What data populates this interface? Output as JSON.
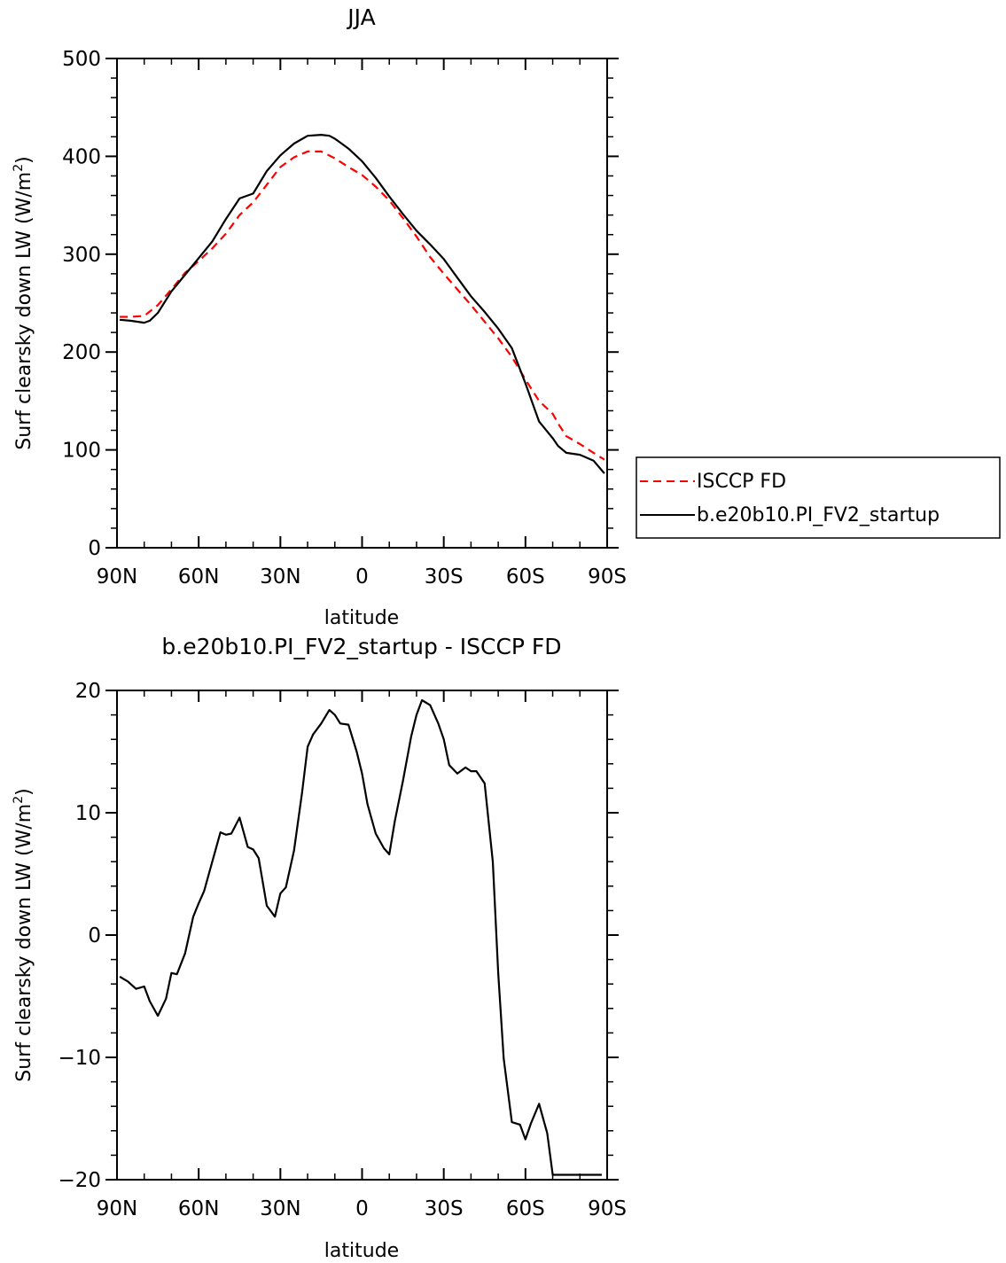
{
  "chart_data": [
    {
      "type": "line",
      "title": "JJA",
      "xlabel": "latitude",
      "ylabel": "Surf clearsky down LW (W/m²)",
      "ylabel_parts": {
        "pre": "Surf clearsky down LW (W/m",
        "sup": "2",
        "post": ")"
      },
      "xlim": [
        90,
        -90
      ],
      "ylim": [
        0,
        500
      ],
      "x_ticks": [
        90,
        60,
        30,
        0,
        -30,
        -60,
        -90
      ],
      "x_tick_labels": [
        "90N",
        "60N",
        "30N",
        "0",
        "30S",
        "60S",
        "90S"
      ],
      "y_ticks": [
        0,
        100,
        200,
        300,
        400,
        500
      ],
      "y_tick_labels": [
        "0",
        "100",
        "200",
        "300",
        "400",
        "500"
      ],
      "legend": {
        "placement": "right",
        "entries": [
          "ISCCP FD",
          "b.e20b10.PI_FV2_startup"
        ]
      },
      "series": [
        {
          "name": "ISCCP FD",
          "color": "#ff0000",
          "dashed": true,
          "x": [
            89,
            85,
            80,
            75,
            70,
            65,
            60,
            55,
            50,
            45,
            40,
            35,
            30,
            25,
            20,
            15,
            10,
            5,
            0,
            -5,
            -10,
            -15,
            -20,
            -25,
            -30,
            -35,
            -40,
            -45,
            -50,
            -55,
            -60,
            -65,
            -70,
            -72,
            -75,
            -80,
            -85,
            -89
          ],
          "y": [
            236,
            236,
            237,
            248,
            264,
            281,
            293,
            306,
            321,
            340,
            353,
            371,
            389,
            399,
            405,
            405,
            398,
            389,
            381,
            369,
            355,
            337,
            318,
            297,
            280,
            264,
            248,
            231,
            214,
            195,
            172,
            150,
            137,
            127,
            114,
            106,
            97,
            90
          ]
        },
        {
          "name": "b.e20b10.PI_FV2_startup",
          "color": "#000000",
          "dashed": false,
          "x": [
            89,
            85,
            80,
            78,
            75,
            70,
            65,
            60,
            55,
            50,
            45,
            40,
            35,
            30,
            25,
            20,
            15,
            12,
            10,
            8,
            5,
            0,
            -5,
            -10,
            -15,
            -20,
            -25,
            -30,
            -35,
            -40,
            -45,
            -50,
            -55,
            -60,
            -65,
            -70,
            -72,
            -75,
            -80,
            -85,
            -89
          ],
          "y": [
            233,
            232,
            230,
            232,
            240,
            262,
            279,
            296,
            313,
            336,
            357,
            362,
            385,
            401,
            413,
            421,
            422,
            421,
            418,
            414,
            408,
            395,
            378,
            359,
            341,
            324,
            310,
            295,
            276,
            257,
            241,
            224,
            204,
            168,
            129,
            112,
            104,
            97,
            95,
            89,
            76
          ]
        }
      ]
    },
    {
      "type": "line",
      "title": "b.e20b10.PI_FV2_startup - ISCCP FD",
      "xlabel": "latitude",
      "ylabel": "Surf clearsky down LW (W/m²)",
      "ylabel_parts": {
        "pre": "Surf clearsky down LW (W/m",
        "sup": "2",
        "post": ")"
      },
      "xlim": [
        90,
        -90
      ],
      "ylim": [
        -20,
        20
      ],
      "x_ticks": [
        90,
        60,
        30,
        0,
        -30,
        -60,
        -90
      ],
      "x_tick_labels": [
        "90N",
        "60N",
        "30N",
        "0",
        "30S",
        "60S",
        "90S"
      ],
      "y_ticks": [
        -20,
        -10,
        0,
        10,
        20
      ],
      "y_tick_labels": [
        "−20",
        "−10",
        "0",
        "10",
        "20"
      ],
      "series": [
        {
          "color": "#000000",
          "dashed": false,
          "x": [
            89,
            86,
            83,
            80,
            78,
            75,
            72,
            70,
            68,
            65,
            62,
            60,
            58,
            55,
            52,
            50,
            48,
            45,
            42,
            40,
            38,
            35,
            32,
            30,
            28,
            25,
            22,
            20,
            18,
            15,
            12,
            10,
            8,
            5,
            2,
            0,
            -2,
            -5,
            -8,
            -10,
            -12,
            -15,
            -18,
            -20,
            -22,
            -25,
            -28,
            -30,
            -32,
            -35,
            -38,
            -40,
            -42,
            -45,
            -48,
            -50,
            -52,
            -55,
            -58,
            -60,
            -62,
            -65,
            -68,
            -70,
            -72,
            -75,
            -78,
            -80,
            -82,
            -85,
            -88
          ],
          "y": [
            -3.4,
            -3.8,
            -4.4,
            -4.2,
            -5.4,
            -6.6,
            -5.2,
            -3.1,
            -3.2,
            -1.5,
            1.5,
            2.6,
            3.6,
            6.0,
            8.4,
            8.2,
            8.3,
            9.6,
            7.2,
            7.0,
            6.3,
            2.4,
            1.5,
            3.4,
            3.9,
            6.9,
            11.7,
            15.4,
            16.4,
            17.3,
            18.4,
            18.0,
            17.3,
            17.2,
            15.0,
            13.2,
            10.7,
            8.3,
            7.1,
            6.6,
            9.3,
            12.6,
            16.2,
            18.0,
            19.2,
            18.8,
            17.3,
            16.0,
            13.9,
            13.2,
            13.7,
            13.4,
            13.4,
            12.4,
            6.0,
            -3.1,
            -10.1,
            -15.3,
            -15.5,
            -16.7,
            -15.4,
            -13.8,
            -16.2,
            -19.6,
            -19.6,
            -19.6,
            -19.6,
            -19.6,
            -19.6,
            -19.6,
            -19.6
          ]
        }
      ]
    }
  ]
}
